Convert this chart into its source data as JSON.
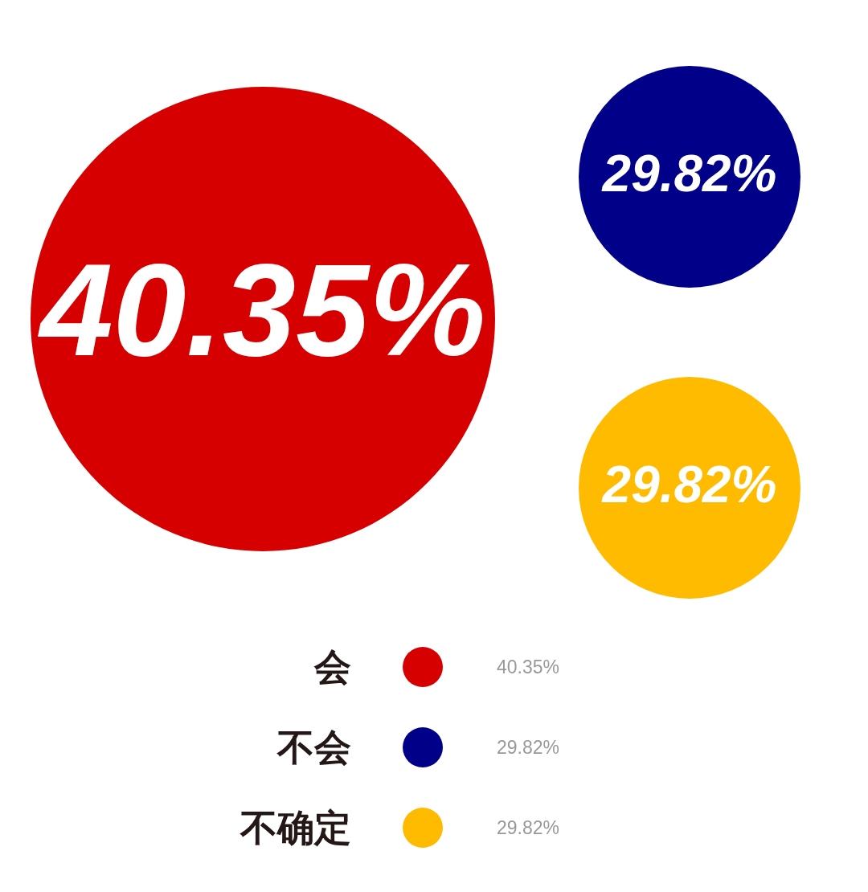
{
  "chart_data": {
    "type": "other",
    "categories": [
      "会",
      "不会",
      "不确定"
    ],
    "values": [
      40.35,
      29.82,
      29.82
    ],
    "value_labels": [
      "40.35%",
      "29.82%",
      "29.82%"
    ],
    "colors": [
      "#d70000",
      "#000088",
      "#ffbb00"
    ]
  }
}
